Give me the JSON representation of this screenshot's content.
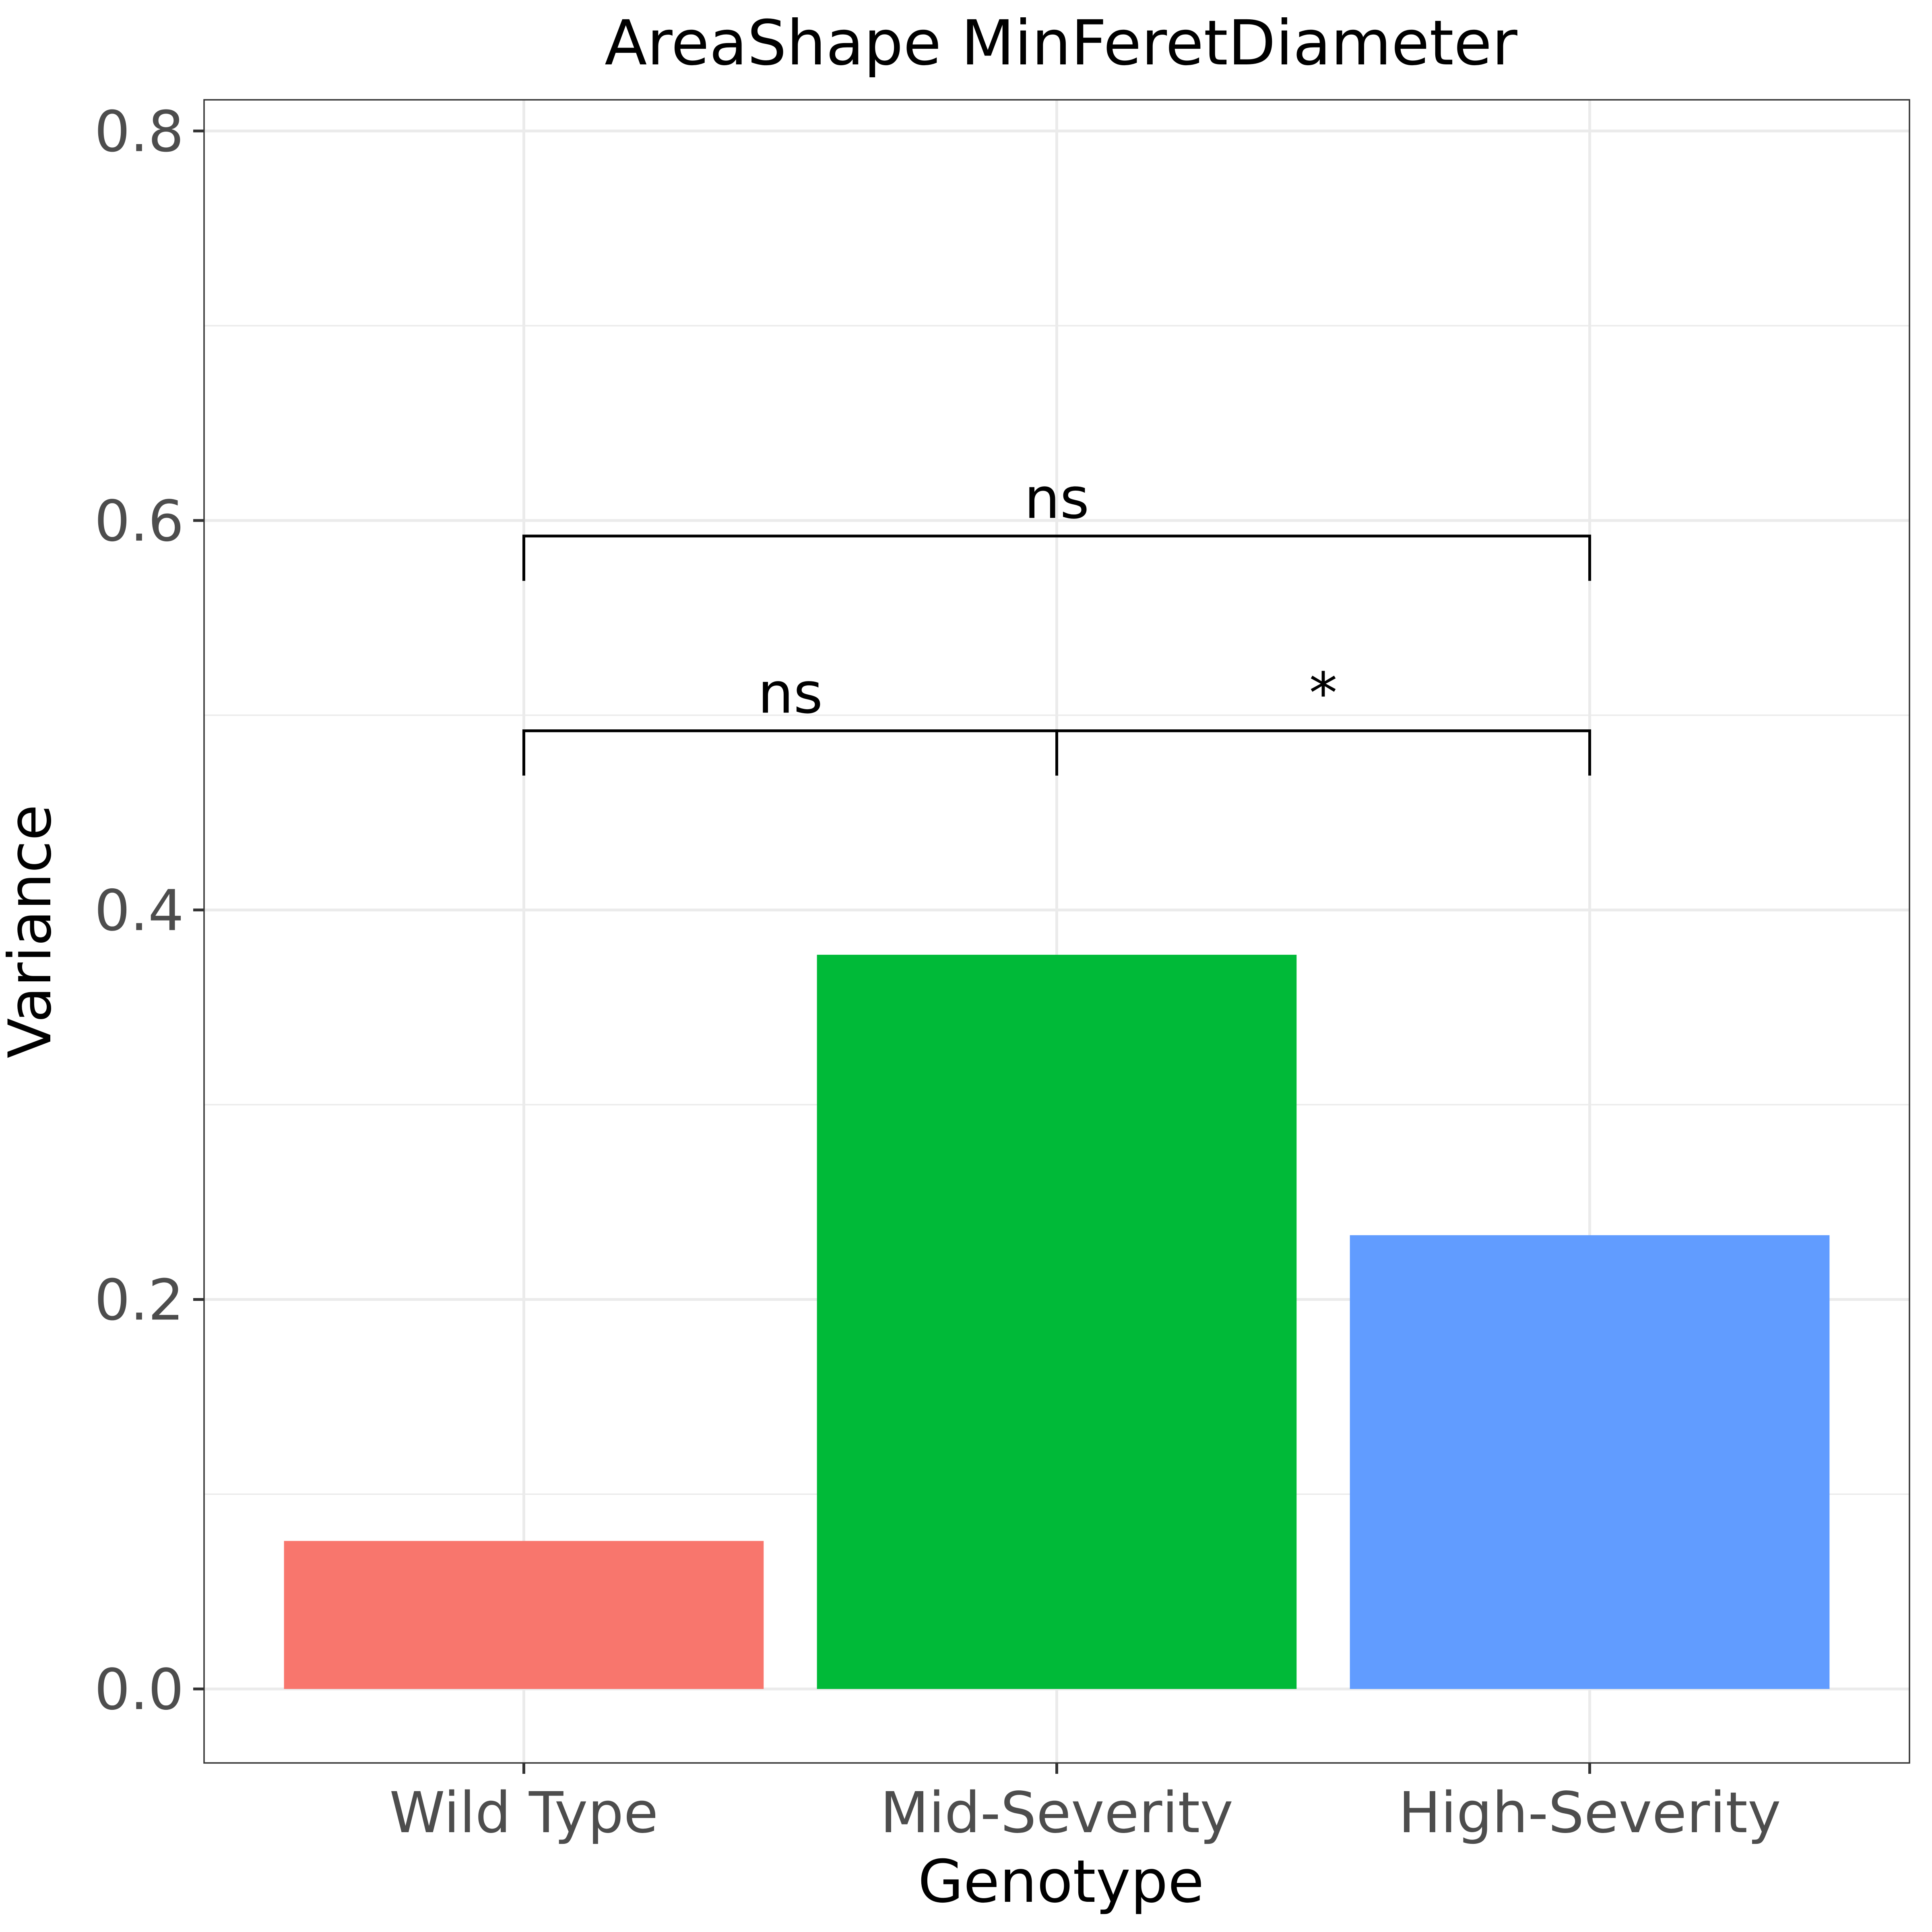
{
  "chart_data": {
    "type": "bar",
    "title": "AreaShape MinFeretDiameter",
    "xlabel": "Genotype",
    "ylabel": "Variance",
    "categories": [
      "Wild Type",
      "Mid-Severity",
      "High-Severity"
    ],
    "values": [
      0.076,
      0.377,
      0.233
    ],
    "colors": [
      "#F8766D",
      "#00BA38",
      "#619CFF"
    ],
    "ylim": [
      -0.038,
      0.816
    ],
    "yticks": [
      0.0,
      0.2,
      0.4,
      0.6,
      0.8
    ],
    "ytick_labels": [
      "0.0",
      "0.2",
      "0.4",
      "0.6",
      "0.8"
    ],
    "grid": true,
    "legend": "none",
    "annotations": [
      {
        "from": "Wild Type",
        "to": "Mid-Severity",
        "y": 0.492,
        "label": "ns"
      },
      {
        "from": "Mid-Severity",
        "to": "High-Severity",
        "y": 0.492,
        "label": "*"
      },
      {
        "from": "Wild Type",
        "to": "High-Severity",
        "y": 0.592,
        "label": "ns"
      }
    ]
  }
}
